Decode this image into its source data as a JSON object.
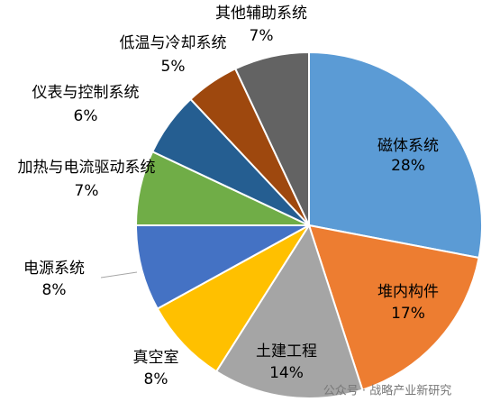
{
  "chart_data": {
    "type": "pie",
    "categories": [
      "磁体系统",
      "堆内构件",
      "土建工程",
      "真空室",
      "电源系统",
      "加热与电流驱动系统",
      "仪表与控制系统",
      "低温与冷却系统",
      "其他辅助系统"
    ],
    "values": [
      28,
      17,
      14,
      8,
      8,
      7,
      6,
      5,
      7
    ],
    "value_labels": [
      "28%",
      "17%",
      "14%",
      "8%",
      "8%",
      "7%",
      "6%",
      "5%",
      "7%"
    ],
    "colors": [
      "#5b9bd5",
      "#ed7d31",
      "#a5a5a5",
      "#ffc000",
      "#4472c4",
      "#70ad47",
      "#255e91",
      "#9e480e",
      "#636363"
    ],
    "watermark": "公众号 · 战略产业新研究"
  }
}
